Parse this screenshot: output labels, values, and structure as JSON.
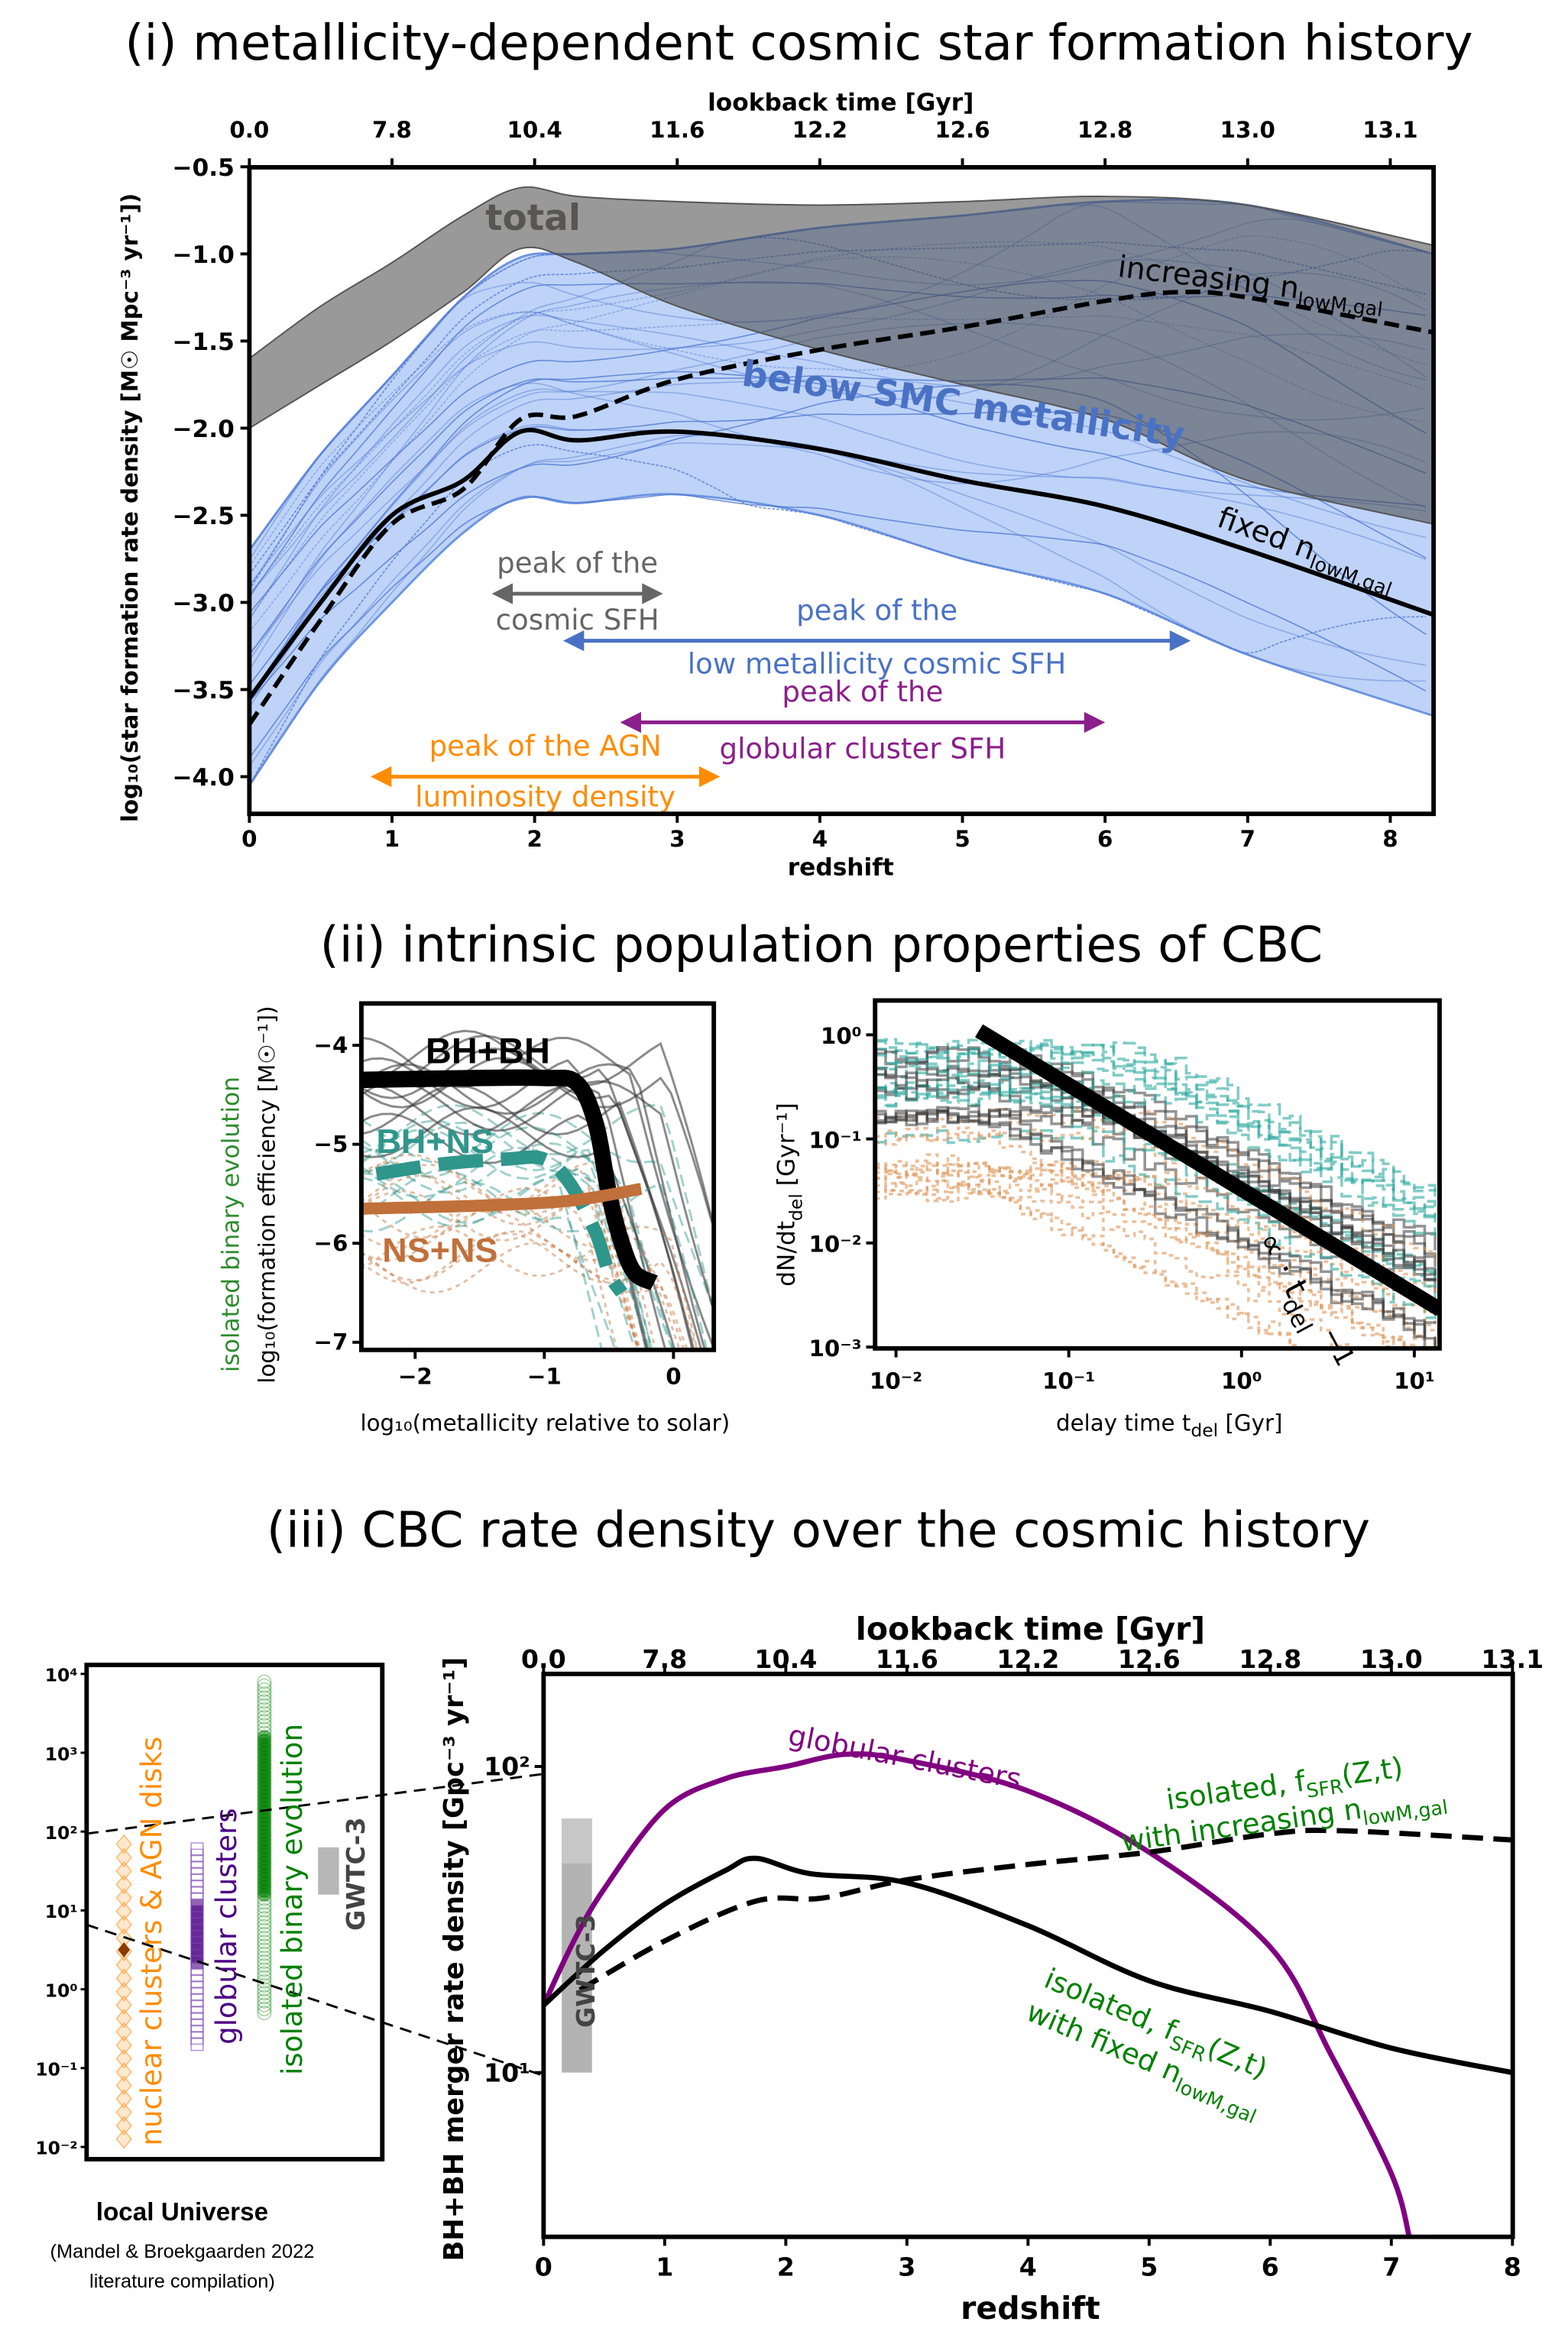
{
  "titles": {
    "i": "(i) metallicity-dependent cosmic star formation history",
    "ii": "(ii) intrinsic population properties of CBC",
    "iii": "(iii) CBC rate density over the cosmic history"
  },
  "colors": {
    "total_band": "#7a7a7a",
    "low_metallicity_band": "#6d95e0",
    "low_metallicity_text": "#4a72c4",
    "overlap": "#5f6d8a",
    "cosmic_sfh_arrow": "#666666",
    "low_z_arrow": "#4a72c4",
    "gc_arrow": "#8b1f8b",
    "agn_arrow": "#ff8c00",
    "bhbh": "#000000",
    "bhns": "#2f968c",
    "nsns": "#c0703a",
    "globular": "#800080",
    "isolated": "#008000",
    "nuclear": "#ff8c00",
    "gc_scatter": "#4b0082",
    "gwtc": "#888888"
  },
  "chart_data": [
    {
      "id": "sfh",
      "type": "area+line",
      "xlabel": "redshift",
      "xlim": [
        0,
        8.3
      ],
      "xticks": [
        0,
        1,
        2,
        3,
        4,
        5,
        6,
        7,
        8
      ],
      "top_xlabel": "lookback time [Gyr]",
      "top_xticks": [
        "0.0",
        "7.8",
        "10.4",
        "11.6",
        "12.2",
        "12.6",
        "12.8",
        "13.0",
        "13.1"
      ],
      "ylabel": "log₁₀(star formation rate density  [M☉ Mpc⁻³ yr⁻¹])",
      "ylim": [
        -4.21,
        -0.5
      ],
      "yticks": [
        "−0.5",
        "−1.0",
        "−1.5",
        "−2.0",
        "−2.5",
        "−3.0",
        "−3.5",
        "−4.0"
      ],
      "ytick_values": [
        -0.5,
        -1.0,
        -1.5,
        -2.0,
        -2.5,
        -3.0,
        -3.5,
        -4.0
      ],
      "bands": [
        {
          "name": "below SMC metallicity",
          "x": [
            0,
            0.5,
            1,
            1.5,
            1.9,
            2.3,
            3,
            4,
            5,
            6,
            7,
            8.3
          ],
          "upper": [
            -2.7,
            -2.15,
            -1.7,
            -1.25,
            -1.02,
            -1.0,
            -0.97,
            -0.85,
            -0.78,
            -0.7,
            -0.72,
            -1.0
          ],
          "lower": [
            -4.05,
            -3.45,
            -3.0,
            -2.6,
            -2.4,
            -2.43,
            -2.38,
            -2.5,
            -2.75,
            -2.95,
            -3.3,
            -3.65
          ]
        },
        {
          "name": "total",
          "x": [
            0,
            0.5,
            1,
            1.5,
            1.9,
            2.3,
            3,
            4,
            5,
            6,
            7,
            8.3
          ],
          "upper": [
            -1.6,
            -1.3,
            -1.05,
            -0.78,
            -0.62,
            -0.67,
            -0.7,
            -0.72,
            -0.7,
            -0.67,
            -0.72,
            -0.95
          ],
          "lower": [
            -2.0,
            -1.75,
            -1.5,
            -1.22,
            -0.97,
            -1.05,
            -1.3,
            -1.55,
            -1.75,
            -1.95,
            -2.3,
            -2.55
          ]
        }
      ],
      "lines": [
        {
          "name": "fixed n_lowM,gal",
          "style": "solid",
          "x": [
            0,
            0.5,
            1,
            1.5,
            1.9,
            2.3,
            3,
            4,
            5,
            6,
            7,
            8.3
          ],
          "y": [
            -3.55,
            -3.0,
            -2.5,
            -2.3,
            -2.02,
            -2.07,
            -2.02,
            -2.12,
            -2.3,
            -2.45,
            -2.7,
            -3.07
          ]
        },
        {
          "name": "increasing n_lowM,gal",
          "style": "dashed",
          "x": [
            0,
            0.5,
            1,
            1.5,
            1.9,
            2.3,
            3,
            4,
            5,
            6,
            6.5,
            7,
            8.3
          ],
          "y": [
            -3.7,
            -3.1,
            -2.55,
            -2.35,
            -1.95,
            -1.93,
            -1.72,
            -1.55,
            -1.42,
            -1.27,
            -1.22,
            -1.25,
            -1.45
          ]
        }
      ],
      "labels": {
        "total": "total",
        "below_smc": "below SMC metallicity",
        "increasing": "increasing n",
        "fixed": "fixed n",
        "sub": "lowM,gal"
      },
      "arrows": [
        {
          "key": "cosmic",
          "from": 1.7,
          "to": 2.9,
          "y": -2.95,
          "color": "#666666",
          "line1": "peak of the",
          "line2": "cosmic SFH"
        },
        {
          "key": "lowz",
          "from": 2.2,
          "to": 6.6,
          "y": -3.22,
          "color": "#4a72c4",
          "line1": "peak of the",
          "line2": "low metallicity cosmic SFH"
        },
        {
          "key": "gc",
          "from": 2.6,
          "to": 6.0,
          "y": -3.5,
          "color": "#8b1f8b",
          "line1": "peak of the",
          "line2": "globular cluster SFH"
        },
        {
          "key": "agn",
          "from": 0.85,
          "to": 3.3,
          "y": -4.0,
          "color": "#ff8c00",
          "line1": "peak of the AGN",
          "line2": "luminosity density"
        }
      ]
    },
    {
      "id": "efficiency",
      "type": "line",
      "xlabel": "log₁₀(metallicity relative to solar)",
      "xlim": [
        -2.42,
        0.31
      ],
      "xticks": [
        "−2",
        "−1",
        "0"
      ],
      "xtick_values": [
        -2,
        -1,
        0
      ],
      "ylabel": "log₁₀(formation efficiency [M☉⁻¹])",
      "ylabel_group": "isolated binary evolution",
      "ylim": [
        -7.07,
        -3.58
      ],
      "yticks": [
        "−4",
        "−5",
        "−6",
        "−7"
      ],
      "ytick_values": [
        -4,
        -5,
        -6,
        -7
      ],
      "series": [
        {
          "name": "BH+BH",
          "x": [
            -2.42,
            -1.5,
            -1.0,
            -0.75,
            -0.6,
            -0.5,
            -0.4,
            -0.3,
            -0.15
          ],
          "y": [
            -4.35,
            -4.33,
            -4.33,
            -4.38,
            -4.8,
            -5.5,
            -6.0,
            -6.3,
            -6.4
          ]
        },
        {
          "name": "BH+NS",
          "x": [
            -2.3,
            -1.8,
            -1.3,
            -1.0,
            -0.8,
            -0.6,
            -0.5,
            -0.4
          ],
          "y": [
            -5.3,
            -5.2,
            -5.15,
            -5.15,
            -5.4,
            -5.9,
            -6.3,
            -6.5
          ]
        },
        {
          "name": "NS+NS",
          "x": [
            -2.4,
            -1.5,
            -0.8,
            -0.25
          ],
          "y": [
            -5.65,
            -5.62,
            -5.57,
            -5.45
          ]
        }
      ]
    },
    {
      "id": "delay_time",
      "type": "line",
      "xlabel": "delay time  t",
      "xlabel_sub": "del",
      "xlabel_unit": " [Gyr]",
      "xscale": "log",
      "xlim_log10": [
        -2.12,
        1.15
      ],
      "xticks": [
        "10⁻²",
        "10⁻¹",
        "10⁰",
        "10¹"
      ],
      "xtick_values": [
        -2,
        -1,
        0,
        1
      ],
      "ylabel": "dN/dt",
      "ylabel_sub": "del",
      "ylabel_unit": " [Gyr⁻¹]",
      "yscale": "log",
      "ylim_log10": [
        -3.01,
        0.33
      ],
      "yticks": [
        "10⁰",
        "10⁻¹",
        "10⁻²",
        "10⁻³"
      ],
      "ytick_values": [
        0,
        -1,
        -2,
        -3
      ],
      "powerlaw": {
        "label": "∝ · t",
        "label_sub": "del",
        "label_exp": " −1",
        "x_log10": [
          -1.52,
          1.15
        ],
        "y_log10": [
          0.04,
          -2.64
        ]
      }
    },
    {
      "id": "local",
      "type": "scatter",
      "yscale": "log",
      "yticks": [
        "10⁴",
        "10³",
        "10²",
        "10¹",
        "10⁰",
        "10⁻¹",
        "10⁻²"
      ],
      "ytick_values": [
        4,
        3,
        2,
        1,
        0,
        -1,
        -2
      ],
      "caption": "local Universe",
      "note1": "(Mandel & Broekgaarden 2022",
      "note2": "literature compilation)",
      "groups": [
        {
          "name": "nuclear clusters & AGN disks",
          "log_range": [
            -1.9,
            1.9
          ]
        },
        {
          "name": "globular clusters",
          "log_range": [
            -0.7,
            1.8
          ]
        },
        {
          "name": "isolated binary evolution",
          "log_range": [
            -0.3,
            3.9
          ]
        },
        {
          "name": "GWTC-3",
          "log_range": [
            1.2,
            1.8
          ]
        }
      ]
    },
    {
      "id": "bbh_rate",
      "type": "line",
      "xlabel": "redshift",
      "xlim": [
        0,
        8
      ],
      "xticks": [
        0,
        1,
        2,
        3,
        4,
        5,
        6,
        7,
        8
      ],
      "top_xlabel": "lookback time [Gyr]",
      "top_xticks": [
        "0.0",
        "7.8",
        "10.4",
        "11.6",
        "12.2",
        "12.6",
        "12.8",
        "13.0",
        "13.1"
      ],
      "ylabel": "BH+BH merger rate density [Gpc⁻³ yr⁻¹]",
      "yscale": "log",
      "ylim_log10": [
        0.46,
        2.3
      ],
      "yticks": [
        "10²",
        "10¹"
      ],
      "ytick_values": [
        2,
        1
      ],
      "gwtc_band": {
        "label": "GWTC-3",
        "z": [
          0.15,
          0.4
        ],
        "log_range": [
          1.0,
          1.83
        ]
      },
      "series": [
        {
          "name": "globular clusters",
          "style": "solid",
          "x": [
            0,
            0.25,
            0.5,
            1,
            1.5,
            2,
            2.5,
            3,
            4,
            5,
            6,
            6.5,
            7,
            7.15
          ],
          "y": [
            1.22,
            1.43,
            1.6,
            1.86,
            1.96,
            2.0,
            2.04,
            2.02,
            1.92,
            1.72,
            1.41,
            1.06,
            0.67,
            0.46
          ]
        },
        {
          "name": "isolated, fixed n_lowM,gal",
          "style": "solid",
          "x": [
            0,
            0.5,
            1,
            1.5,
            1.75,
            2.2,
            3,
            4,
            5,
            6,
            7,
            8
          ],
          "y": [
            1.22,
            1.4,
            1.55,
            1.66,
            1.7,
            1.65,
            1.62,
            1.48,
            1.3,
            1.2,
            1.08,
            1.0
          ]
        },
        {
          "name": "isolated, increasing n_lowM,gal",
          "style": "dashed",
          "x": [
            0.3,
            1,
            1.75,
            2.3,
            3,
            4,
            5,
            6,
            6.6,
            8
          ],
          "y": [
            1.27,
            1.43,
            1.56,
            1.57,
            1.63,
            1.68,
            1.72,
            1.78,
            1.79,
            1.76
          ]
        }
      ],
      "labels": {
        "gc": "globular clusters",
        "iso1": "isolated, f",
        "iso_sub": "SFR",
        "iso2": "(Z,t)",
        "inc": "with increasing n",
        "fix": "with fixed n",
        "nsub": "lowM,gal"
      }
    }
  ]
}
